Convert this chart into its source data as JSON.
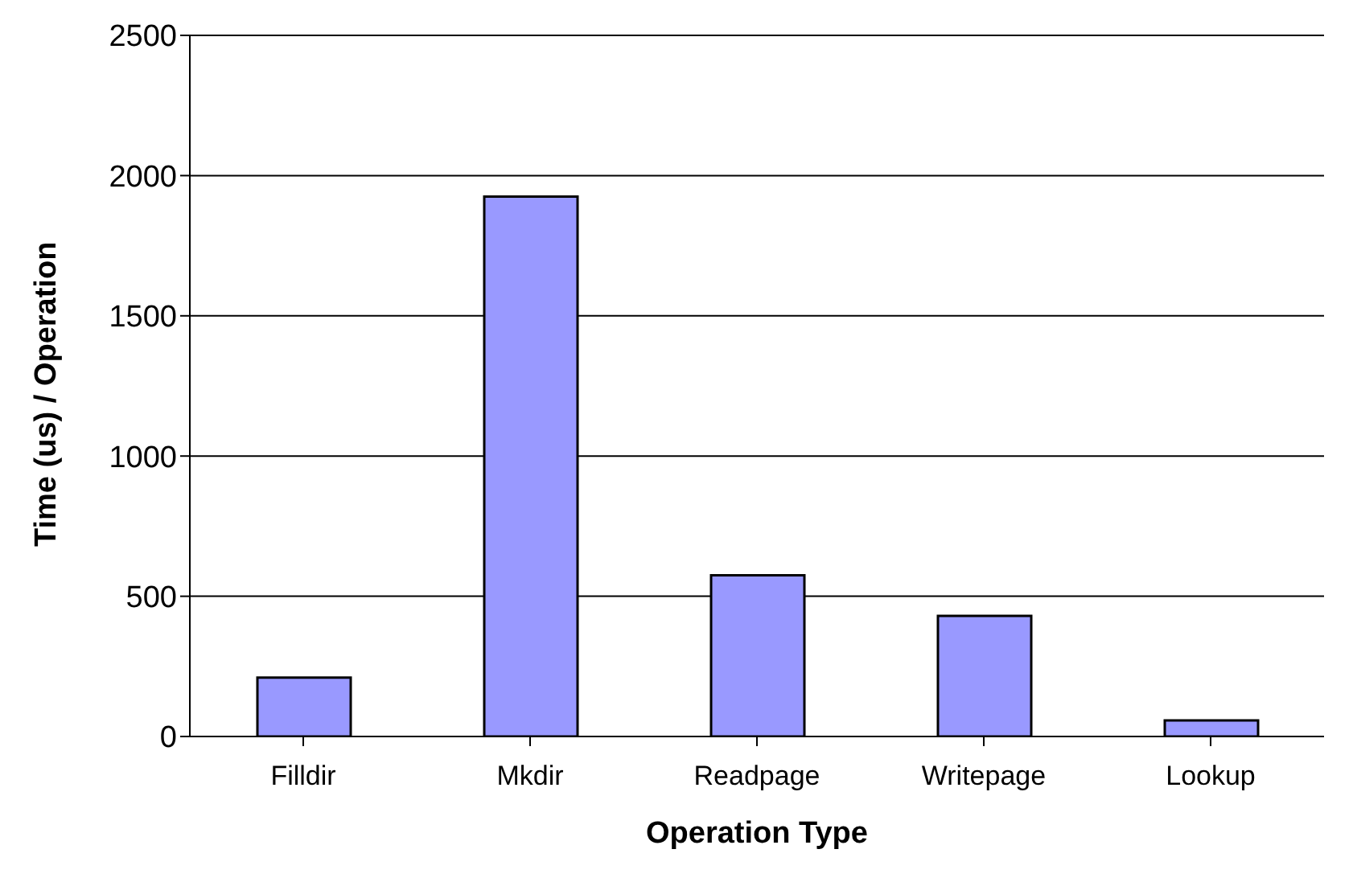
{
  "chart_data": {
    "type": "bar",
    "xlabel": "Operation Type",
    "ylabel": "Time (us) / Operation",
    "categories": [
      "Filldir",
      "Mkdir",
      "Readpage",
      "Writepage",
      "Lookup"
    ],
    "values": [
      210,
      1925,
      575,
      430,
      57
    ],
    "color": "#9999ff",
    "ylim": [
      0,
      2500
    ],
    "yticks": [
      0,
      500,
      1000,
      1500,
      2000,
      2500
    ],
    "grid": "y"
  }
}
